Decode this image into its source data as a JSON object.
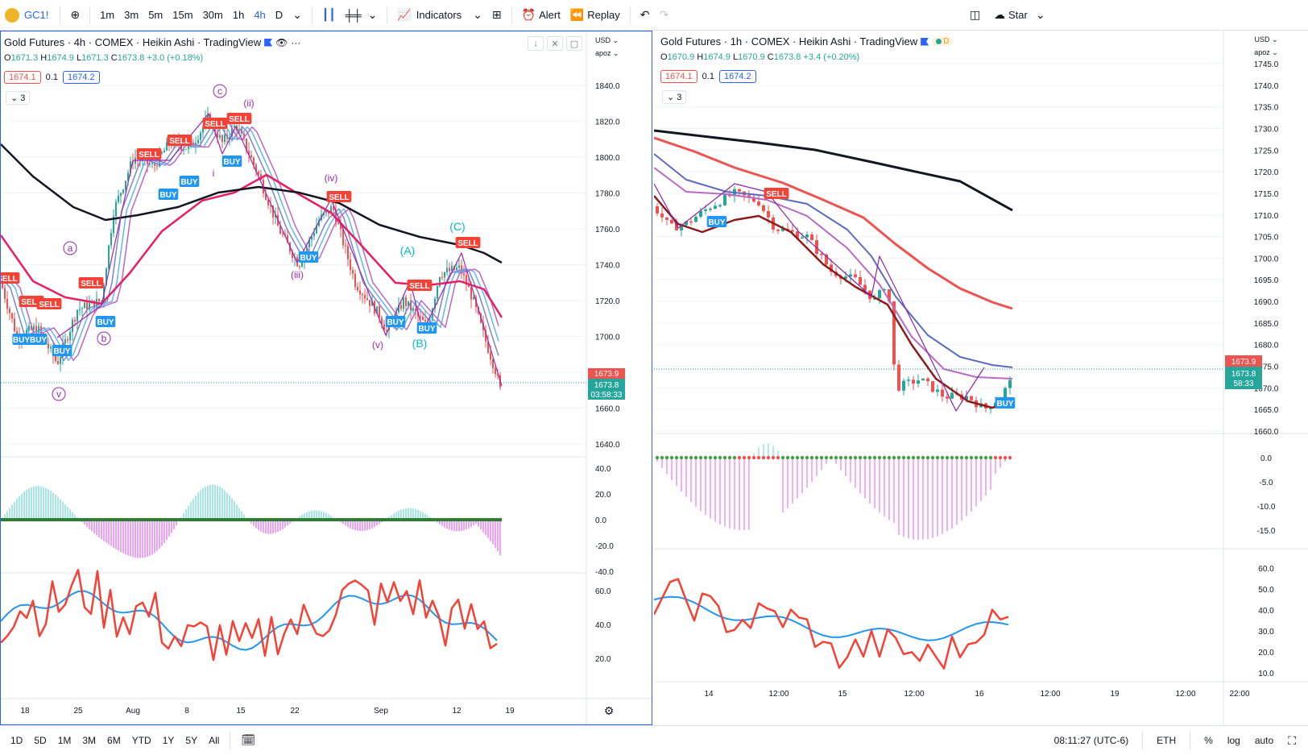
{
  "topbar": {
    "symbol": "GC1!",
    "intervals": [
      "1m",
      "3m",
      "5m",
      "15m",
      "30m",
      "1h",
      "4h",
      "D"
    ],
    "active_interval": "4h",
    "indicators_label": "Indicators",
    "alert_label": "Alert",
    "replay_label": "Replay",
    "star_label": "Star"
  },
  "bottombar": {
    "ranges": [
      "1D",
      "5D",
      "1M",
      "3M",
      "6M",
      "YTD",
      "1Y",
      "5Y",
      "All"
    ],
    "clock": "08:11:27 (UTC-6)",
    "session": "ETH",
    "percent": "%",
    "log": "log",
    "auto": "auto"
  },
  "left": {
    "title": "Gold Futures · 4h · COMEX · Heikin Ashi · TradingView",
    "ohlc": {
      "o_label": "O",
      "o": "1671.3",
      "h_label": "H",
      "h": "1674.9",
      "l_label": "L",
      "l": "1671.3",
      "c_label": "C",
      "c": "1673.8",
      "change": "+3.0 (+0.18%)"
    },
    "sell_price": "1674.1",
    "spread": "0.1",
    "buy_price": "1674.2",
    "collapse": "3",
    "currency": "USD",
    "mode": "apoz",
    "price_ticks": [
      "1840.0",
      "1820.0",
      "1800.0",
      "1780.0",
      "1760.0",
      "1740.0",
      "1720.0",
      "1700.0",
      "1680.0",
      "1660.0",
      "1640.0"
    ],
    "macd_ticks": [
      "40.0",
      "20.0",
      "0.0",
      "-20.0",
      "-40.0"
    ],
    "rsi_ticks": [
      "60.0",
      "40.0",
      "20.0"
    ],
    "x_ticks": [
      "18",
      "25",
      "Aug",
      "8",
      "15",
      "22",
      "Sep",
      "12",
      "19"
    ],
    "last_price": "1673.9",
    "last_price2": "1673.8",
    "countdown": "03:58:33",
    "waves": [
      "c",
      "(ii)",
      "i",
      "(iv)",
      "(C)",
      "a",
      "(A)",
      "b",
      "(iii)",
      "(v)",
      "(B)",
      "v"
    ],
    "signal_sell": "SELL",
    "signal_buy": "BUY",
    "signal_buybuy": "BUYBUY"
  },
  "right": {
    "title": "Gold Futures · 1h · COMEX · Heikin Ashi · TradingView",
    "session_badge": "D",
    "ohlc": {
      "o_label": "O",
      "o": "1670.9",
      "h_label": "H",
      "h": "1674.9",
      "l_label": "L",
      "l": "1670.9",
      "c_label": "C",
      "c": "1673.8",
      "change": "+3.4 (+0.20%)"
    },
    "sell_price": "1674.1",
    "spread": "0.1",
    "buy_price": "1674.2",
    "collapse": "3",
    "currency": "USD",
    "mode": "apoz",
    "price_ticks": [
      "1745.0",
      "1740.0",
      "1735.0",
      "1730.0",
      "1725.0",
      "1720.0",
      "1715.0",
      "1710.0",
      "1705.0",
      "1700.0",
      "1695.0",
      "1690.0",
      "1685.0",
      "1680.0",
      "1675.0",
      "1670.0",
      "1665.0",
      "1660.0"
    ],
    "macd_ticks": [
      "0.0",
      "-5.0",
      "-10.0",
      "-15.0"
    ],
    "rsi_ticks": [
      "60.0",
      "50.0",
      "40.0",
      "30.0",
      "20.0",
      "10.0"
    ],
    "x_ticks": [
      "14",
      "12:00",
      "15",
      "12:00",
      "16",
      "12:00",
      "19",
      "12:00",
      "22:00"
    ],
    "last_price": "1673.9",
    "last_price2": "1673.8",
    "countdown": "58:33",
    "signal_sell": "SELL",
    "signal_buy": "BUY"
  },
  "colors": {
    "accent": "#2962ff",
    "up": "#26a69a",
    "down": "#ef5350",
    "buy": "#2196f3",
    "sell": "#f44336",
    "wave": "#9c27b0",
    "wave_cap": "#00bcd4"
  }
}
